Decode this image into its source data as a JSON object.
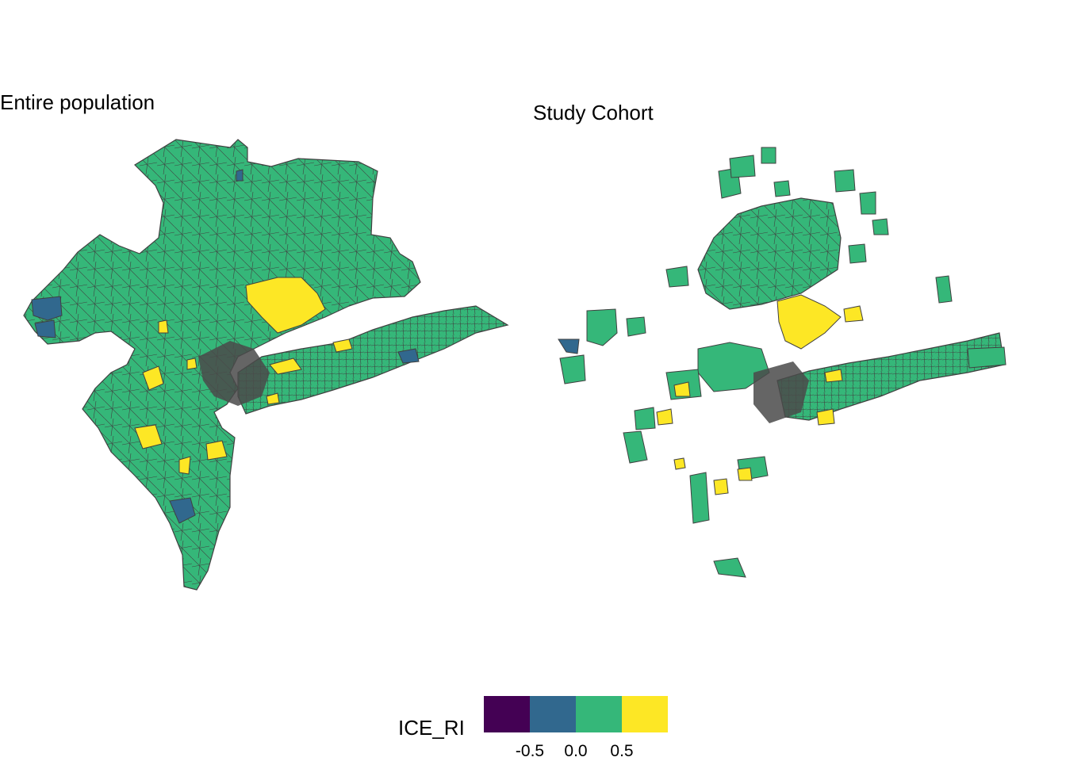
{
  "panels": [
    {
      "title": "Entire population"
    },
    {
      "title": "Study Cohort"
    }
  ],
  "legend": {
    "title": "ICE_RI",
    "bins": [
      {
        "color": "#440154"
      },
      {
        "color": "#31688E"
      },
      {
        "color": "#35B779"
      },
      {
        "color": "#FDE725"
      }
    ],
    "ticks": [
      "-0.5",
      "0.0",
      "0.5"
    ]
  },
  "colors": {
    "border": "#404040",
    "background": "#ffffff",
    "dense_core": "#4a4a4a"
  }
}
